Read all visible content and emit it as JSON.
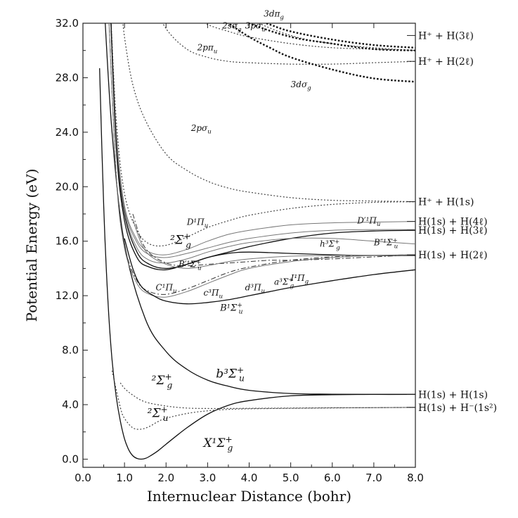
{
  "chart_data": {
    "type": "line",
    "xlabel": "Internuclear Distance (bohr)",
    "ylabel": "Potential Energy (eV)",
    "xlim": [
      0.0,
      8.0
    ],
    "ylim": [
      -0.6,
      32.0
    ],
    "xticks": [
      "0.0",
      "1.0",
      "2.0",
      "3.0",
      "4.0",
      "5.0",
      "6.0",
      "7.0",
      "8.0"
    ],
    "yticks": [
      "0.0",
      "4.0",
      "8.0",
      "12.0",
      "16.0",
      "20.0",
      "24.0",
      "28.0",
      "32.0"
    ],
    "xtick_values": [
      0,
      1,
      2,
      3,
      4,
      5,
      6,
      7,
      8
    ],
    "ytick_values": [
      0,
      4,
      8,
      12,
      16,
      20,
      24,
      28,
      32
    ],
    "asymptotes": [
      {
        "text": "H⁺ + H(3ℓ)",
        "y": 31.1
      },
      {
        "text": "H⁺ + H(2ℓ)",
        "y": 29.2
      },
      {
        "text": "H⁺ + H(1s)",
        "y": 18.9
      },
      {
        "text": "H(1s) + H(4ℓ)",
        "y": 17.45
      },
      {
        "text": "H(1s) + H(3ℓ)",
        "y": 16.8
      },
      {
        "text": "H(1s) + H(2ℓ)",
        "y": 15.0
      },
      {
        "text": "H(1s) + H(1s)",
        "y": 4.75
      },
      {
        "text": "H(1s) + H⁻(1s²)",
        "y": 3.8
      }
    ],
    "series": [
      {
        "name": "X1Σg+",
        "style": "solid",
        "width": 1.3,
        "x": [
          0.4,
          0.5,
          0.6,
          0.7,
          0.8,
          0.9,
          1.0,
          1.1,
          1.2,
          1.3,
          1.4,
          1.5,
          1.6,
          1.8,
          2.0,
          2.5,
          3.0,
          3.5,
          4.0,
          5.0,
          6.0,
          7.0,
          8.0
        ],
        "values": [
          28.7,
          18.5,
          11.7,
          7.3,
          4.6,
          2.8,
          1.5,
          0.7,
          0.25,
          0.05,
          0.0,
          0.05,
          0.2,
          0.6,
          1.1,
          2.3,
          3.3,
          3.95,
          4.3,
          4.65,
          4.73,
          4.75,
          4.75
        ]
      },
      {
        "name": "b3Σu+",
        "style": "solid",
        "width": 1.3,
        "x": [
          0.5,
          0.7,
          1.0,
          1.5,
          2.0,
          2.5,
          3.0,
          3.5,
          4.0,
          5.0,
          6.0,
          7.0,
          8.0
        ],
        "values": [
          34.0,
          24.0,
          15.8,
          10.3,
          7.9,
          6.6,
          5.8,
          5.35,
          5.05,
          4.82,
          4.77,
          4.75,
          4.75
        ]
      },
      {
        "name": "2Σg+ (low)",
        "style": "dotted",
        "width": 1.2,
        "x": [
          0.9,
          1.0,
          1.2,
          1.5,
          2.0,
          2.5,
          3.0,
          3.5,
          4.0,
          5.0,
          6.0,
          7.0,
          8.0
        ],
        "values": [
          5.6,
          5.2,
          4.7,
          4.2,
          3.9,
          3.75,
          3.72,
          3.72,
          3.73,
          3.75,
          3.77,
          3.78,
          3.8
        ]
      },
      {
        "name": "2Σu+",
        "style": "dotted",
        "width": 1.2,
        "x": [
          0.7,
          0.9,
          1.0,
          1.2,
          1.4,
          1.6,
          1.8,
          2.0,
          2.5,
          3.0,
          3.5,
          4.0,
          5.0,
          6.0,
          7.0,
          8.0
        ],
        "values": [
          6.5,
          3.8,
          3.0,
          2.3,
          2.2,
          2.4,
          2.75,
          3.0,
          3.35,
          3.55,
          3.65,
          3.7,
          3.73,
          3.76,
          3.78,
          3.8
        ]
      },
      {
        "name": "2pσu",
        "style": "dotted",
        "width": 1.2,
        "x": [
          0.9,
          1.0,
          1.2,
          1.5,
          2.0,
          2.5,
          3.0,
          3.5,
          4.0,
          5.0,
          6.0,
          7.0,
          8.0
        ],
        "values": [
          34.0,
          31.0,
          27.5,
          24.9,
          22.4,
          21.2,
          20.4,
          19.9,
          19.6,
          19.2,
          19.0,
          18.95,
          18.9
        ]
      },
      {
        "name": "2pπu",
        "style": "dotted",
        "width": 1.2,
        "x": [
          1.6,
          2.0,
          2.5,
          3.0,
          3.5,
          4.0,
          5.0,
          6.0,
          7.0,
          8.0
        ],
        "values": [
          34.0,
          31.6,
          30.1,
          29.5,
          29.2,
          29.1,
          29.0,
          29.0,
          29.1,
          29.2
        ]
      },
      {
        "name": "2sσg",
        "style": "dotted",
        "width": 1.2,
        "x": [
          2.3,
          2.6,
          3.0,
          3.5,
          4.0,
          5.0,
          6.0,
          7.0,
          8.0
        ],
        "values": [
          34.0,
          32.6,
          31.9,
          31.4,
          31.0,
          30.5,
          30.2,
          30.1,
          30.0
        ]
      },
      {
        "name": "3pσu",
        "style": "dotted",
        "width": 1.2,
        "x": [
          3.5,
          4.0,
          5.0,
          6.0,
          7.0,
          8.0
        ],
        "values": [
          34.0,
          32.4,
          31.1,
          30.5,
          30.2,
          30.0
        ]
      },
      {
        "name": "3dσg",
        "style": "bold-dotted",
        "width": 2.4,
        "x": [
          3.2,
          3.5,
          4.0,
          4.5,
          5.0,
          6.0,
          7.0,
          8.0
        ],
        "values": [
          32.7,
          32.0,
          31.0,
          30.2,
          29.5,
          28.6,
          27.95,
          27.7
        ]
      },
      {
        "name": "3dπg",
        "style": "bold-dotted",
        "width": 2.4,
        "x": [
          3.7,
          4.0,
          4.5,
          5.0,
          6.0,
          7.0,
          8.0
        ],
        "values": [
          32.8,
          32.4,
          31.9,
          31.4,
          30.8,
          30.4,
          30.2
        ]
      },
      {
        "name": "3pσu (heavy)",
        "style": "bold-dotted",
        "width": 2.4,
        "x": [
          3.0,
          3.5,
          4.0,
          5.0,
          6.0,
          7.0,
          8.0
        ],
        "values": [
          34.0,
          32.9,
          32.0,
          31.0,
          30.5,
          30.1,
          30.0
        ]
      },
      {
        "name": "2Σg+ (upper)",
        "style": "dotted",
        "width": 1.2,
        "x": [
          0.65,
          0.8,
          1.0,
          1.3,
          1.6,
          2.0,
          2.5,
          3.0,
          3.5,
          4.0,
          5.0,
          6.0,
          7.0,
          8.0
        ],
        "values": [
          34.0,
          25.0,
          19.5,
          16.8,
          15.8,
          15.7,
          16.3,
          17.0,
          17.5,
          17.9,
          18.4,
          18.7,
          18.85,
          18.9
        ]
      },
      {
        "name": "D1Πu",
        "style": "solid-gray",
        "width": 1.0,
        "x": [
          0.65,
          0.8,
          1.0,
          1.3,
          1.6,
          2.0,
          2.5,
          3.0,
          3.5,
          4.0,
          5.0,
          6.0,
          7.0,
          8.0
        ],
        "values": [
          34.0,
          24.2,
          18.6,
          16.1,
          15.2,
          15.0,
          15.4,
          16.0,
          16.5,
          16.8,
          17.2,
          17.35,
          17.4,
          17.45
        ]
      },
      {
        "name": "D'1Πu",
        "style": "solid-gray",
        "width": 1.0,
        "x": [
          0.65,
          0.8,
          1.0,
          1.3,
          1.6,
          2.0,
          2.5,
          3.0,
          3.5,
          4.0,
          5.0,
          6.0,
          7.0,
          8.0
        ],
        "values": [
          34.0,
          24.0,
          18.4,
          15.9,
          15.0,
          14.8,
          15.1,
          15.5,
          15.9,
          16.2,
          16.6,
          16.8,
          16.85,
          16.85
        ]
      },
      {
        "name": "B'1Σu+",
        "style": "solid",
        "width": 1.3,
        "x": [
          0.65,
          0.8,
          1.0,
          1.3,
          1.6,
          2.0,
          2.5,
          3.0,
          3.5,
          4.0,
          5.0,
          6.0,
          7.0,
          8.0
        ],
        "values": [
          34.0,
          23.5,
          18.0,
          15.2,
          14.3,
          14.0,
          14.3,
          14.8,
          15.2,
          15.6,
          16.2,
          16.6,
          16.75,
          16.8
        ]
      },
      {
        "name": "B''1Σu+",
        "style": "solid-gray",
        "width": 1.0,
        "x": [
          0.65,
          0.8,
          1.0,
          1.3,
          1.6,
          2.0,
          2.5,
          3.0,
          3.5,
          4.0,
          5.0,
          6.0,
          7.0,
          8.0
        ],
        "values": [
          34.0,
          23.8,
          18.2,
          15.5,
          14.6,
          14.4,
          14.7,
          15.2,
          15.6,
          15.9,
          16.2,
          16.2,
          16.0,
          15.8
        ]
      },
      {
        "name": "h3Σg+",
        "style": "solid",
        "width": 1.3,
        "x": [
          0.65,
          0.8,
          1.0,
          1.3,
          1.6,
          2.0,
          2.5,
          3.0,
          3.5,
          4.0,
          5.0,
          6.0,
          7.0,
          8.0
        ],
        "values": [
          34.0,
          23.0,
          17.5,
          14.8,
          14.1,
          13.9,
          14.3,
          14.8,
          15.1,
          15.2,
          15.1,
          15.0,
          14.95,
          14.95
        ]
      },
      {
        "name": "C1Πu",
        "style": "dashdot",
        "width": 1.0,
        "x": [
          0.6,
          0.8,
          1.0,
          1.3,
          1.6,
          2.0,
          2.5,
          3.0,
          3.5,
          4.0,
          5.0,
          6.0,
          7.0,
          8.0
        ],
        "values": [
          34.0,
          21.0,
          15.7,
          13.1,
          12.3,
          12.1,
          12.5,
          13.1,
          13.7,
          14.1,
          14.6,
          14.85,
          14.95,
          15.0
        ]
      },
      {
        "name": "c3Πu",
        "style": "solid-gray",
        "width": 1.0,
        "x": [
          0.6,
          0.8,
          1.0,
          1.3,
          1.6,
          2.0,
          2.5,
          3.0,
          3.5,
          4.0,
          5.0,
          6.0,
          7.0,
          8.0
        ],
        "values": [
          34.0,
          20.8,
          15.5,
          12.9,
          12.1,
          11.9,
          12.3,
          12.9,
          13.5,
          14.0,
          14.5,
          14.8,
          14.95,
          15.0
        ]
      },
      {
        "name": "I1Πg",
        "style": "dashdot",
        "width": 1.0,
        "x": [
          1.2,
          1.5,
          2.0,
          2.5,
          3.0,
          3.5,
          4.0,
          4.5,
          5.0,
          6.0,
          7.0,
          8.0
        ],
        "values": [
          18.0,
          15.5,
          14.4,
          14.2,
          14.3,
          14.4,
          14.5,
          14.6,
          14.6,
          14.7,
          14.85,
          15.0
        ]
      },
      {
        "name": "a3Σg+",
        "style": "solid-gray",
        "width": 1.0,
        "x": [
          1.2,
          1.5,
          2.0,
          2.5,
          3.0,
          3.5,
          4.0,
          5.0,
          6.0,
          7.0,
          8.0
        ],
        "values": [
          17.6,
          15.3,
          14.3,
          14.0,
          14.2,
          14.5,
          14.7,
          14.9,
          14.95,
          14.97,
          15.0
        ]
      },
      {
        "name": "B1Σu+",
        "style": "solid",
        "width": 1.3,
        "x": [
          1.0,
          1.2,
          1.4,
          1.7,
          2.0,
          2.5,
          3.0,
          3.5,
          4.0,
          4.5,
          5.0,
          6.0,
          7.0,
          8.0
        ],
        "values": [
          16.2,
          14.0,
          12.7,
          12.0,
          11.6,
          11.4,
          11.5,
          11.7,
          12.0,
          12.3,
          12.6,
          13.1,
          13.55,
          13.9
        ]
      }
    ],
    "curve_labels": [
      {
        "html": "3dπ",
        "sub": "g",
        "x": 4.35,
        "y": 32.5,
        "size": 12
      },
      {
        "html": "3pσ",
        "sub": "u",
        "x": 3.9,
        "y": 31.6,
        "size": 12
      },
      {
        "html": "2sσ",
        "sub": "g",
        "x": 3.35,
        "y": 31.6,
        "size": 12
      },
      {
        "html": "2pπ",
        "sub": "u",
        "x": 2.75,
        "y": 30.0,
        "size": 12
      },
      {
        "html": "3dσ",
        "sub": "g",
        "x": 5.0,
        "y": 27.3,
        "size": 12
      },
      {
        "html": "2pσ",
        "sub": "u",
        "x": 2.6,
        "y": 24.1,
        "size": 12
      },
      {
        "html": "D¹Π",
        "sub": "u",
        "x": 2.5,
        "y": 17.2,
        "size": 12
      },
      {
        "html": "D′¹Π",
        "sub": "u",
        "x": 6.6,
        "y": 17.3,
        "size": 12
      },
      {
        "html": "h³Σ",
        "sub": "g",
        "sup": "+",
        "x": 5.7,
        "y": 15.6,
        "size": 12
      },
      {
        "html": "B″¹Σ",
        "sub": "u",
        "sup": "+",
        "x": 7.0,
        "y": 15.7,
        "size": 12
      },
      {
        "html": "B′¹Σ",
        "sub": "u",
        "sup": "+",
        "x": 2.3,
        "y": 14.1,
        "size": 12
      },
      {
        "html": "C¹Π",
        "sub": "u",
        "x": 1.75,
        "y": 12.4,
        "size": 12
      },
      {
        "html": "c³Π",
        "sub": "u",
        "x": 2.9,
        "y": 12.0,
        "size": 12
      },
      {
        "html": "d³Π",
        "sub": "u",
        "x": 3.9,
        "y": 12.4,
        "size": 12
      },
      {
        "html": "a³Σ",
        "sub": "g",
        "sup": "+",
        "x": 4.6,
        "y": 12.8,
        "size": 12
      },
      {
        "html": "I¹Π",
        "sub": "g",
        "x": 5.0,
        "y": 13.1,
        "size": 12
      },
      {
        "html": "B¹Σ",
        "sub": "u",
        "sup": "+",
        "x": 3.3,
        "y": 10.9,
        "size": 13
      },
      {
        "html": "²Σ",
        "sub": "g",
        "sup": "+",
        "x": 2.1,
        "y": 15.8,
        "size": 17
      },
      {
        "html": "b³Σ",
        "sub": "u",
        "sup": "+",
        "x": 3.2,
        "y": 6.0,
        "size": 17
      },
      {
        "html": "²Σ",
        "sub": "g",
        "sup": "+",
        "x": 1.65,
        "y": 5.5,
        "size": 17
      },
      {
        "html": "²Σ",
        "sub": "u",
        "sup": "+",
        "x": 1.55,
        "y": 3.1,
        "size": 17
      },
      {
        "html": "X¹Σ",
        "sub": "g",
        "sup": "+",
        "x": 2.9,
        "y": 0.9,
        "size": 17
      }
    ]
  }
}
